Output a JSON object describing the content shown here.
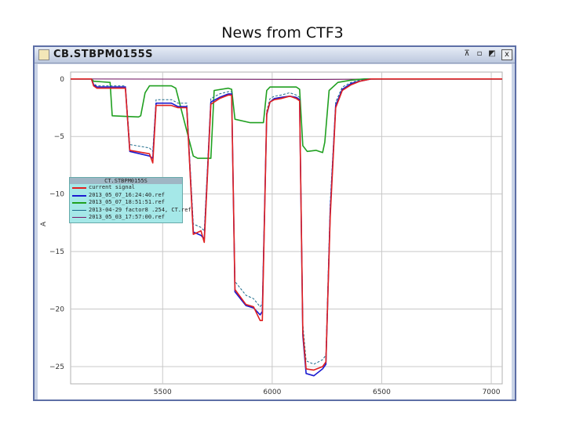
{
  "slide": {
    "title": "News from CTF3"
  },
  "window": {
    "title": "CB.STBPM0155S",
    "controls": [
      "⊼",
      "▫",
      "◩",
      "x"
    ]
  },
  "chart_data": {
    "type": "line",
    "title": "",
    "xlabel": "",
    "ylabel": "A",
    "xlim": [
      5080,
      7050
    ],
    "ylim": [
      -26.5,
      0.6
    ],
    "x_ticks": [
      5500,
      6000,
      6500,
      7000
    ],
    "y_ticks": [
      0,
      -5,
      -10,
      -15,
      -20,
      -25
    ],
    "y_tick_labels": [
      "0",
      "−5",
      "−10",
      "−15",
      "−20",
      "−25"
    ],
    "grid": true,
    "legend": {
      "title": "CT.STBPM0155S",
      "placement": "left",
      "entries": [
        "current signal",
        "2013_05_07_16:24:40.ref",
        "2013_05_07_18:51:51.ref",
        "2013-04-29 factor8 .254, CT.ref",
        "2013_05_03_17:57:00.ref"
      ]
    },
    "series": [
      {
        "name": "current signal",
        "color": "#e02020",
        "x": [
          5080,
          5175,
          5185,
          5200,
          5330,
          5350,
          5440,
          5455,
          5470,
          5540,
          5570,
          5610,
          5640,
          5675,
          5690,
          5720,
          5760,
          5800,
          5815,
          5830,
          5880,
          5915,
          5945,
          5955,
          5975,
          5990,
          6010,
          6040,
          6080,
          6110,
          6125,
          6140,
          6155,
          6190,
          6230,
          6245,
          6265,
          6290,
          6320,
          6360,
          6400,
          6450,
          7050
        ],
        "values": [
          0,
          0,
          -0.6,
          -0.8,
          -0.8,
          -6.2,
          -6.5,
          -7.3,
          -2.3,
          -2.3,
          -2.5,
          -2.5,
          -13.5,
          -13.2,
          -14.2,
          -2.2,
          -1.7,
          -1.4,
          -1.4,
          -18.3,
          -19.6,
          -19.8,
          -21.0,
          -21.0,
          -3.0,
          -2.0,
          -1.8,
          -1.7,
          -1.5,
          -1.7,
          -1.9,
          -22.0,
          -25.2,
          -25.3,
          -25.0,
          -24.6,
          -12.0,
          -2.5,
          -1.0,
          -0.5,
          -0.2,
          0,
          0
        ]
      },
      {
        "name": "2013_05_07_16:24:40.ref",
        "color": "#1b1bd0",
        "x": [
          5080,
          5175,
          5185,
          5200,
          5330,
          5350,
          5440,
          5455,
          5470,
          5540,
          5570,
          5610,
          5640,
          5675,
          5690,
          5720,
          5760,
          5800,
          5815,
          5830,
          5880,
          5915,
          5945,
          5955,
          5975,
          5990,
          6010,
          6040,
          6080,
          6110,
          6125,
          6140,
          6155,
          6190,
          6230,
          6245,
          6265,
          6290,
          6320,
          6360,
          6400,
          6450,
          7050
        ],
        "values": [
          0,
          0,
          -0.5,
          -0.7,
          -0.7,
          -6.3,
          -6.7,
          -6.9,
          -2.1,
          -2.1,
          -2.4,
          -2.4,
          -13.3,
          -13.6,
          -13.9,
          -2.0,
          -1.6,
          -1.3,
          -1.3,
          -18.5,
          -19.7,
          -19.9,
          -20.5,
          -20.2,
          -3.1,
          -2.0,
          -1.7,
          -1.6,
          -1.5,
          -1.6,
          -1.8,
          -22.3,
          -25.6,
          -25.8,
          -25.2,
          -24.8,
          -11.5,
          -2.3,
          -0.9,
          -0.4,
          -0.2,
          0,
          0
        ]
      },
      {
        "name": "2013_05_07_18:51:51.ref",
        "color": "#20a020",
        "x": [
          5080,
          5175,
          5185,
          5260,
          5270,
          5390,
          5400,
          5420,
          5440,
          5540,
          5560,
          5640,
          5660,
          5720,
          5735,
          5800,
          5815,
          5830,
          5900,
          5915,
          5960,
          5975,
          5990,
          6110,
          6125,
          6140,
          6160,
          6200,
          6230,
          6240,
          6260,
          6300,
          6360,
          6420,
          6500,
          7050
        ],
        "values": [
          0,
          0,
          -0.2,
          -0.3,
          -3.2,
          -3.3,
          -3.2,
          -1.2,
          -0.6,
          -0.6,
          -0.8,
          -6.7,
          -6.9,
          -6.9,
          -1.0,
          -0.8,
          -0.9,
          -3.5,
          -3.8,
          -3.8,
          -3.8,
          -1.0,
          -0.7,
          -0.7,
          -0.9,
          -5.8,
          -6.3,
          -6.2,
          -6.4,
          -5.5,
          -1.0,
          -0.3,
          -0.1,
          0,
          0,
          0
        ]
      },
      {
        "name": "2013-04-29 factor8 .254, CT.ref",
        "color": "#1a6a8a",
        "x": [
          5080,
          5175,
          5185,
          5200,
          5330,
          5350,
          5440,
          5455,
          5470,
          5540,
          5570,
          5610,
          5640,
          5675,
          5690,
          5720,
          5760,
          5800,
          5815,
          5830,
          5880,
          5915,
          5945,
          5955,
          5975,
          5990,
          6010,
          6040,
          6080,
          6110,
          6125,
          6140,
          6155,
          6190,
          6230,
          6245,
          6265,
          6290,
          6320,
          6360,
          6400,
          6450,
          7050
        ],
        "values": [
          0,
          0,
          -0.4,
          -0.6,
          -0.6,
          -5.7,
          -6.0,
          -6.3,
          -1.8,
          -1.8,
          -2.1,
          -2.1,
          -12.6,
          -12.9,
          -13.2,
          -1.7,
          -1.3,
          -1.1,
          -1.1,
          -17.6,
          -18.8,
          -19.1,
          -19.8,
          -19.5,
          -2.8,
          -1.7,
          -1.5,
          -1.4,
          -1.2,
          -1.4,
          -1.6,
          -21.3,
          -24.5,
          -24.8,
          -24.4,
          -24.0,
          -10.8,
          -2.0,
          -0.7,
          -0.3,
          -0.1,
          0,
          0
        ]
      },
      {
        "name": "2013_05_03_17:57:00.ref",
        "color": "#7a1a6a",
        "x": [
          5080,
          6200,
          6600,
          7050
        ],
        "values": [
          0,
          -0.05,
          0,
          0
        ]
      }
    ]
  }
}
